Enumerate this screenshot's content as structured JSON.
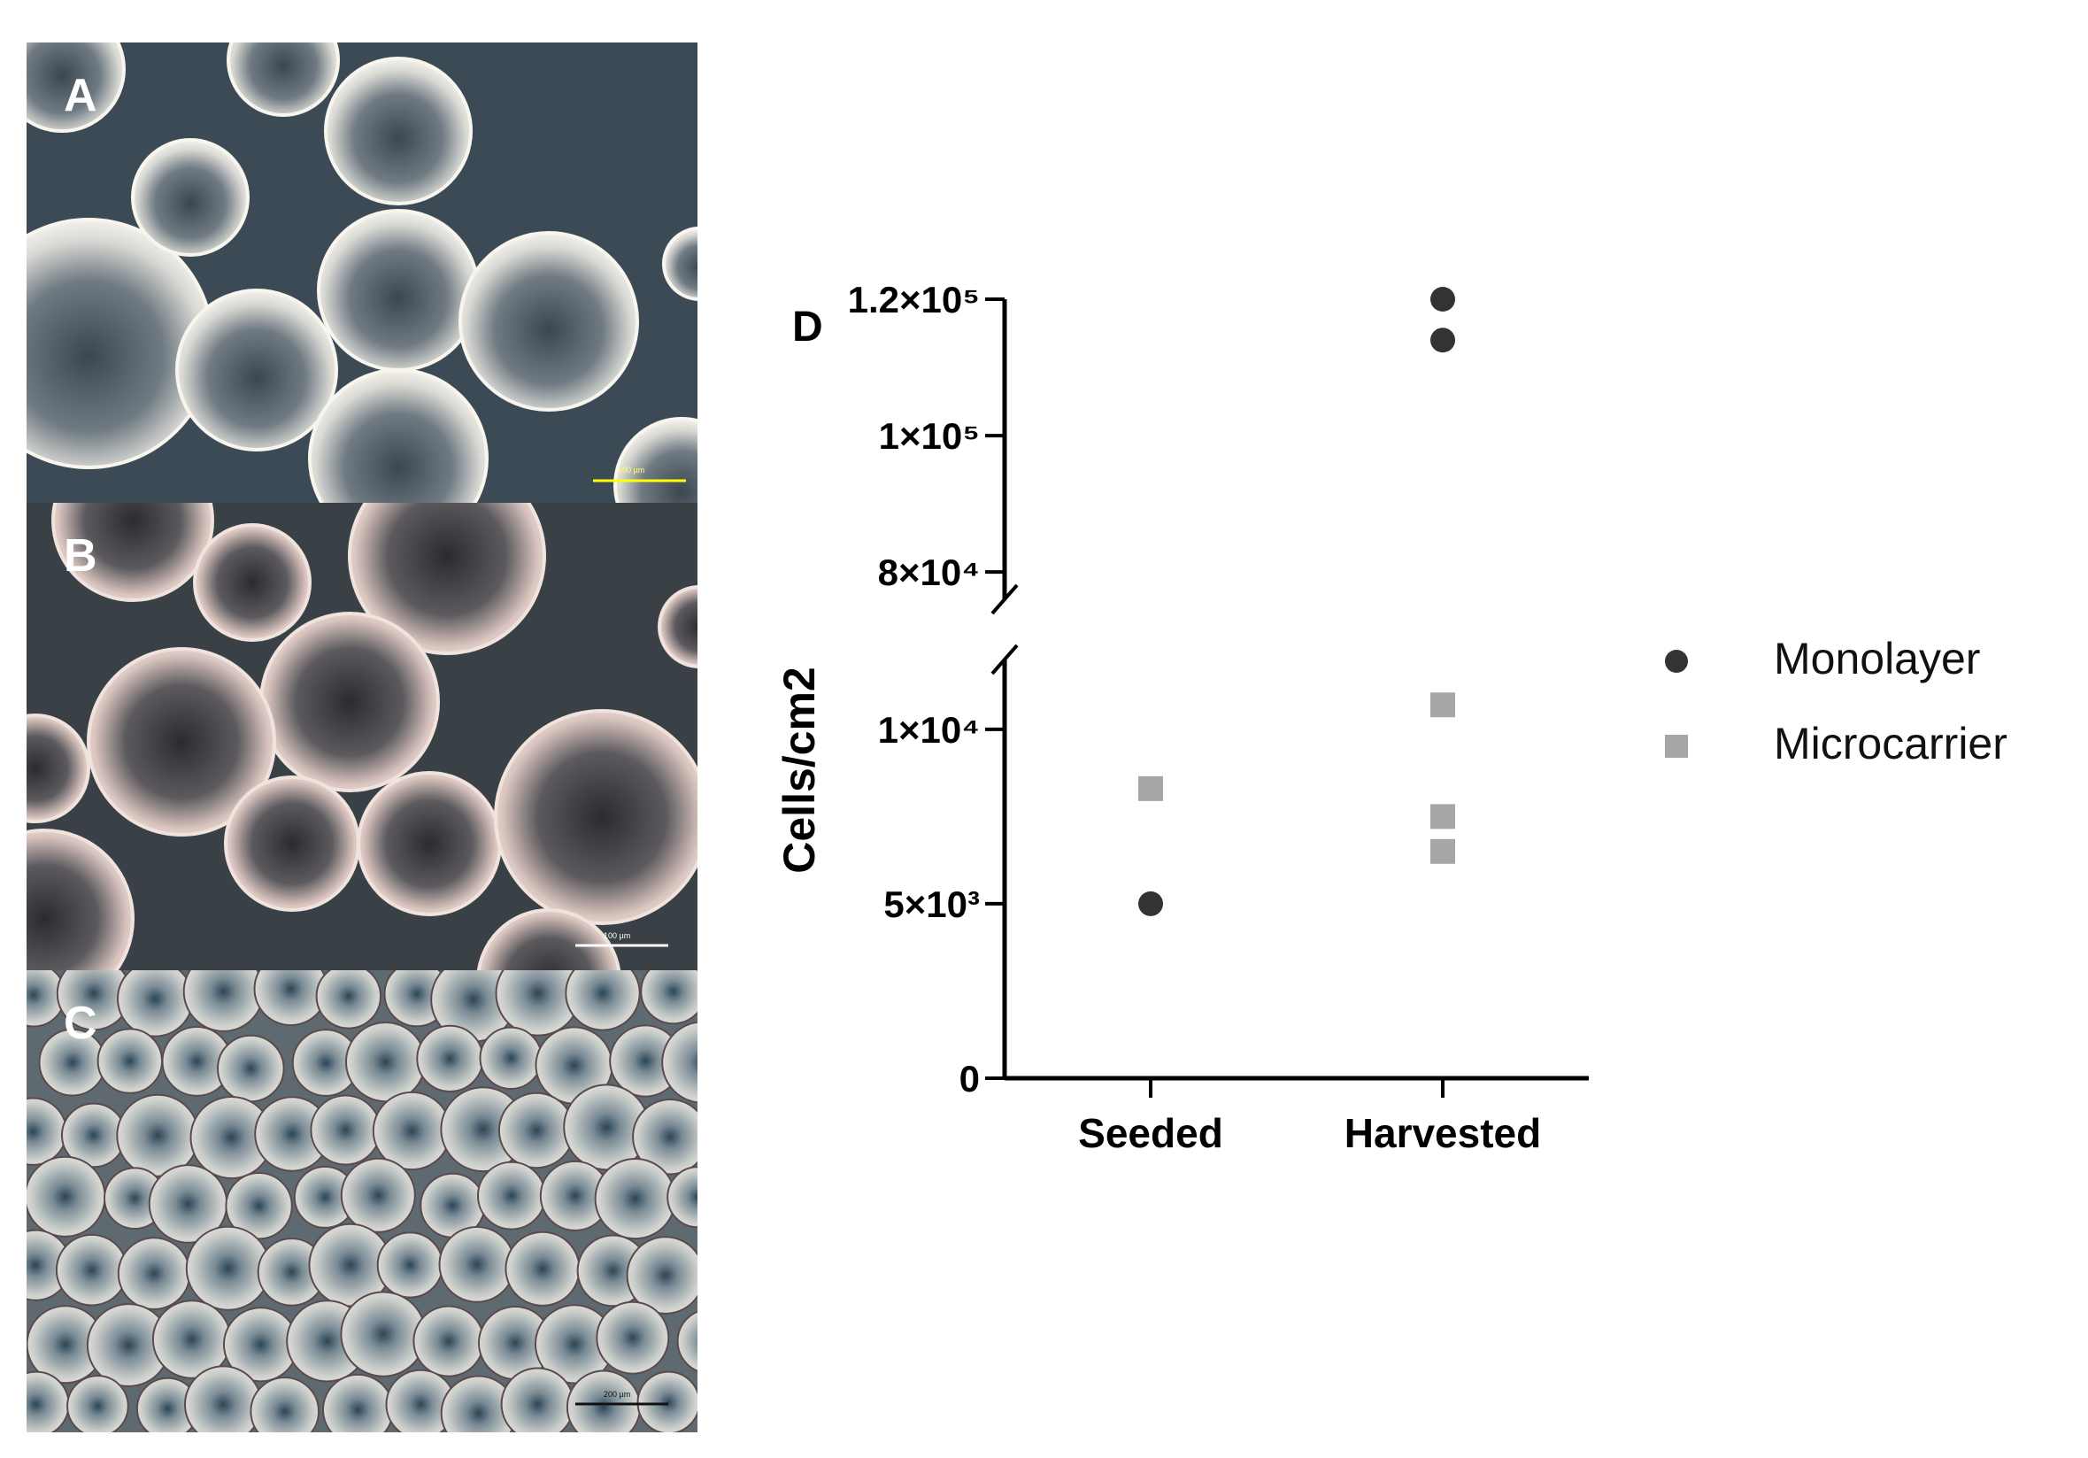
{
  "panels": {
    "a": {
      "label": "A",
      "scale_text": "100 µm"
    },
    "b": {
      "label": "B",
      "scale_text": "100 µm"
    },
    "c": {
      "label": "C",
      "scale_text": "200 µm"
    }
  },
  "chart_data": {
    "type": "scatter",
    "panel_label": "D",
    "ylabel": "Cells/cm2",
    "xlabel": "",
    "categories": [
      "Seeded",
      "Harvested"
    ],
    "y_axis": "broken",
    "lower_segment": {
      "ylim": [
        0,
        12000
      ],
      "ticks": [
        0,
        5000,
        10000
      ],
      "tick_labels": [
        "0",
        "5×10³",
        "1×10⁴"
      ]
    },
    "upper_segment": {
      "ylim": [
        76000,
        120000
      ],
      "ticks": [
        80000,
        100000,
        120000
      ],
      "tick_labels": [
        "8×10⁴",
        "1×10⁵",
        "1.2×10⁵"
      ]
    },
    "legend_position": "right",
    "series": [
      {
        "name": "Monolayer",
        "marker": "circle",
        "color": "#333333",
        "points": [
          {
            "category": "Seeded",
            "y": 5000
          },
          {
            "category": "Harvested",
            "y": 120000
          },
          {
            "category": "Harvested",
            "y": 114000
          }
        ]
      },
      {
        "name": "Microcarrier",
        "marker": "square",
        "color": "#a6a6a6",
        "points": [
          {
            "category": "Seeded",
            "y": 8300
          },
          {
            "category": "Harvested",
            "y": 10700
          },
          {
            "category": "Harvested",
            "y": 7500
          },
          {
            "category": "Harvested",
            "y": 6500
          }
        ]
      }
    ]
  }
}
